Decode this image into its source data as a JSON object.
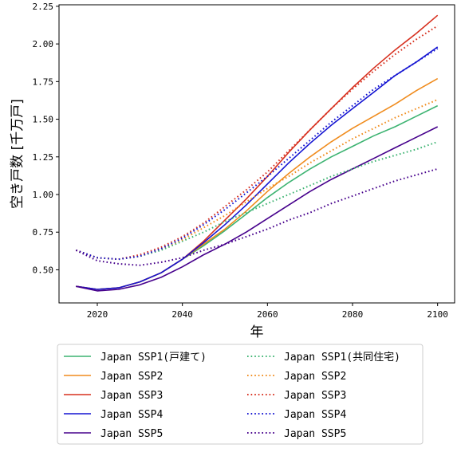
{
  "chart_data": {
    "type": "line",
    "xlabel": "年",
    "ylabel": "空き戸数 [千万戸]",
    "xlim": [
      2011,
      2104
    ],
    "ylim": [
      0.28,
      2.26
    ],
    "xticks": [
      2020,
      2040,
      2060,
      2080,
      2100
    ],
    "yticks": [
      0.5,
      0.75,
      1.0,
      1.25,
      1.5,
      1.75,
      2.0,
      2.25
    ],
    "ytick_labels": [
      "0.50",
      "0.75",
      "1.00",
      "1.25",
      "1.50",
      "1.75",
      "2.00",
      "2.25"
    ],
    "grid": false,
    "legend_position": "below",
    "legend_columns": 2,
    "x": [
      2015,
      2020,
      2025,
      2030,
      2035,
      2040,
      2045,
      2050,
      2055,
      2060,
      2065,
      2070,
      2075,
      2080,
      2085,
      2090,
      2095,
      2100
    ],
    "series": [
      {
        "name": "Japan SSP1(戸建て)",
        "color": "#3cb371",
        "style": "solid",
        "values": [
          0.39,
          0.37,
          0.38,
          0.42,
          0.48,
          0.57,
          0.66,
          0.76,
          0.87,
          0.98,
          1.08,
          1.17,
          1.25,
          1.32,
          1.39,
          1.45,
          1.52,
          1.59
        ]
      },
      {
        "name": "Japan SSP2",
        "color": "#f08c1e",
        "style": "solid",
        "values": [
          0.39,
          0.37,
          0.38,
          0.42,
          0.48,
          0.57,
          0.67,
          0.77,
          0.89,
          1.02,
          1.14,
          1.25,
          1.35,
          1.44,
          1.52,
          1.6,
          1.69,
          1.77
        ]
      },
      {
        "name": "Japan SSP3",
        "color": "#d7301f",
        "style": "solid",
        "values": [
          0.39,
          0.37,
          0.38,
          0.42,
          0.48,
          0.57,
          0.69,
          0.83,
          0.97,
          1.12,
          1.28,
          1.43,
          1.57,
          1.71,
          1.84,
          1.96,
          2.07,
          2.19
        ]
      },
      {
        "name": "Japan SSP4",
        "color": "#1414d2",
        "style": "solid",
        "values": [
          0.39,
          0.37,
          0.38,
          0.42,
          0.48,
          0.57,
          0.68,
          0.8,
          0.93,
          1.07,
          1.21,
          1.34,
          1.46,
          1.57,
          1.68,
          1.79,
          1.88,
          1.98
        ]
      },
      {
        "name": "Japan SSP5",
        "color": "#46008c",
        "style": "solid",
        "values": [
          0.39,
          0.36,
          0.37,
          0.4,
          0.45,
          0.52,
          0.6,
          0.67,
          0.75,
          0.84,
          0.93,
          1.02,
          1.1,
          1.17,
          1.24,
          1.31,
          1.38,
          1.45
        ]
      },
      {
        "name": "Japan SSP1(共同住宅)",
        "color": "#3cb371",
        "style": "dotted",
        "values": [
          0.63,
          0.58,
          0.57,
          0.59,
          0.63,
          0.69,
          0.75,
          0.82,
          0.88,
          0.94,
          1.0,
          1.06,
          1.12,
          1.17,
          1.22,
          1.26,
          1.3,
          1.35
        ]
      },
      {
        "name": "Japan SSP2",
        "color": "#f08c1e",
        "style": "dotted",
        "values": [
          0.63,
          0.58,
          0.57,
          0.59,
          0.64,
          0.7,
          0.78,
          0.86,
          0.95,
          1.04,
          1.12,
          1.21,
          1.29,
          1.37,
          1.44,
          1.51,
          1.57,
          1.63
        ]
      },
      {
        "name": "Japan SSP3",
        "color": "#d7301f",
        "style": "dotted",
        "values": [
          0.63,
          0.58,
          0.57,
          0.6,
          0.65,
          0.72,
          0.81,
          0.92,
          1.03,
          1.15,
          1.29,
          1.43,
          1.57,
          1.7,
          1.82,
          1.93,
          2.03,
          2.12
        ]
      },
      {
        "name": "Japan SSP4",
        "color": "#1414d2",
        "style": "dotted",
        "values": [
          0.63,
          0.58,
          0.57,
          0.59,
          0.64,
          0.71,
          0.8,
          0.9,
          1.01,
          1.12,
          1.24,
          1.36,
          1.48,
          1.59,
          1.7,
          1.79,
          1.88,
          1.97
        ]
      },
      {
        "name": "Japan SSP5",
        "color": "#46008c",
        "style": "dotted",
        "values": [
          0.63,
          0.56,
          0.54,
          0.53,
          0.55,
          0.58,
          0.63,
          0.67,
          0.72,
          0.77,
          0.83,
          0.88,
          0.94,
          0.99,
          1.04,
          1.09,
          1.13,
          1.17
        ]
      }
    ]
  }
}
